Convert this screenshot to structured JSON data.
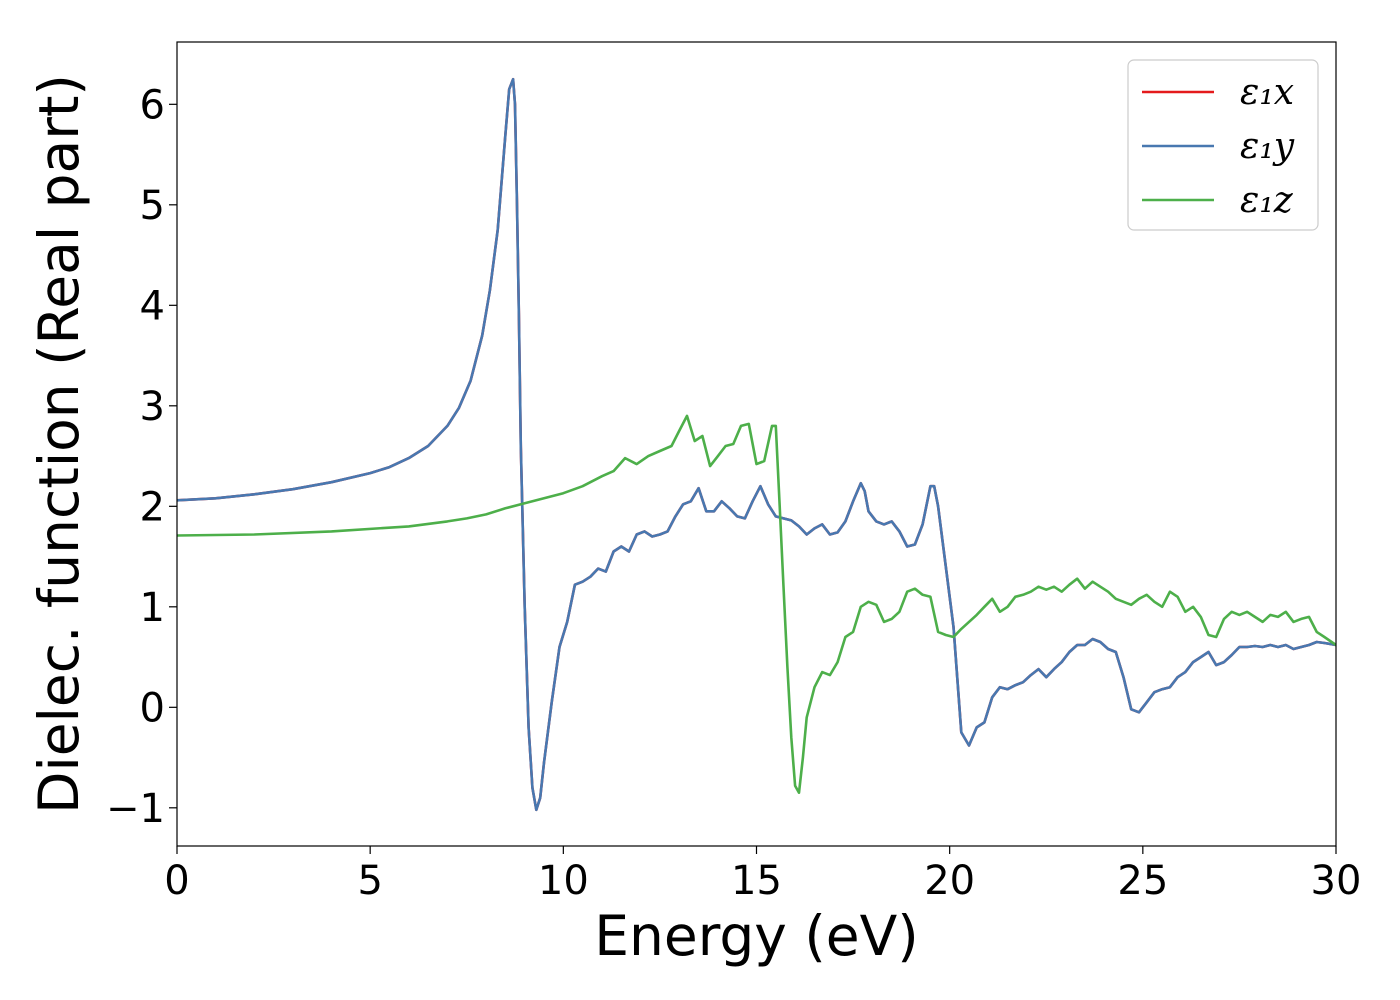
{
  "chart_data": {
    "type": "line",
    "xlabel": "Energy (eV)",
    "ylabel": "Dielec. function (Real part)",
    "xlim": [
      0,
      30
    ],
    "ylim": [
      -1.38,
      6.62
    ],
    "xticks": [
      0,
      5,
      10,
      15,
      20,
      25,
      30
    ],
    "xtick_labels": [
      "0",
      "5",
      "10",
      "15",
      "20",
      "25",
      "30"
    ],
    "yticks": [
      -1,
      0,
      1,
      2,
      3,
      4,
      5,
      6
    ],
    "ytick_labels": [
      "−1",
      "0",
      "1",
      "2",
      "3",
      "4",
      "5",
      "6"
    ],
    "grid": false,
    "legend_position": "top-right",
    "series": [
      {
        "name": "ε₁x",
        "color": "#e41a1c",
        "x": [
          0,
          1,
          2,
          3,
          4,
          5,
          5.5,
          6,
          6.5,
          7,
          7.3,
          7.6,
          7.9,
          8.1,
          8.3,
          8.5,
          8.6,
          8.7,
          8.75,
          8.8,
          8.85,
          8.9,
          9.0,
          9.1,
          9.2,
          9.3,
          9.4,
          9.5,
          9.7,
          9.9,
          10.1,
          10.3,
          10.5,
          10.7,
          10.9,
          11.1,
          11.3,
          11.5,
          11.7,
          11.9,
          12.1,
          12.3,
          12.5,
          12.7,
          12.9,
          13.1,
          13.3,
          13.5,
          13.7,
          13.9,
          14.1,
          14.3,
          14.5,
          14.7,
          14.9,
          15.1,
          15.3,
          15.5,
          15.7,
          15.9,
          16.1,
          16.3,
          16.5,
          16.7,
          16.9,
          17.1,
          17.3,
          17.5,
          17.7,
          17.8,
          17.9,
          18.1,
          18.3,
          18.5,
          18.7,
          18.9,
          19.1,
          19.3,
          19.5,
          19.6,
          19.7,
          19.9,
          20.1,
          20.3,
          20.5,
          20.7,
          20.9,
          21.1,
          21.3,
          21.5,
          21.7,
          21.9,
          22.1,
          22.3,
          22.5,
          22.7,
          22.9,
          23.1,
          23.3,
          23.5,
          23.7,
          23.9,
          24.1,
          24.3,
          24.5,
          24.7,
          24.9,
          25.1,
          25.3,
          25.5,
          25.7,
          25.9,
          26.1,
          26.3,
          26.5,
          26.7,
          26.9,
          27.1,
          27.3,
          27.5,
          27.7,
          27.9,
          28.1,
          28.3,
          28.5,
          28.7,
          28.9,
          29.1,
          29.3,
          29.5,
          29.7,
          30
        ],
        "y": [
          2.06,
          2.08,
          2.12,
          2.17,
          2.24,
          2.33,
          2.39,
          2.48,
          2.6,
          2.8,
          2.98,
          3.25,
          3.7,
          4.15,
          4.75,
          5.7,
          6.15,
          6.25,
          6.0,
          5.0,
          3.9,
          2.6,
          1.0,
          -0.2,
          -0.8,
          -1.02,
          -0.9,
          -0.55,
          0.05,
          0.6,
          0.85,
          1.22,
          1.25,
          1.3,
          1.38,
          1.35,
          1.55,
          1.6,
          1.55,
          1.72,
          1.75,
          1.7,
          1.72,
          1.75,
          1.9,
          2.02,
          2.05,
          2.18,
          1.95,
          1.95,
          2.05,
          1.98,
          1.9,
          1.88,
          2.05,
          2.2,
          2.02,
          1.9,
          1.88,
          1.86,
          1.8,
          1.72,
          1.78,
          1.82,
          1.72,
          1.74,
          1.85,
          2.05,
          2.23,
          2.15,
          1.95,
          1.85,
          1.82,
          1.85,
          1.75,
          1.6,
          1.62,
          1.82,
          2.2,
          2.2,
          2.0,
          1.4,
          0.8,
          -0.25,
          -0.38,
          -0.2,
          -0.15,
          0.1,
          0.2,
          0.18,
          0.22,
          0.25,
          0.32,
          0.38,
          0.3,
          0.38,
          0.45,
          0.55,
          0.62,
          0.62,
          0.68,
          0.65,
          0.58,
          0.55,
          0.3,
          -0.02,
          -0.05,
          0.05,
          0.15,
          0.18,
          0.2,
          0.3,
          0.35,
          0.45,
          0.5,
          0.55,
          0.42,
          0.45,
          0.52,
          0.6,
          0.6,
          0.61,
          0.6,
          0.62,
          0.6,
          0.62,
          0.58,
          0.6,
          0.62,
          0.65,
          0.64,
          0.62
        ]
      },
      {
        "name": "ε₁y",
        "color": "#4878b0",
        "x": [
          0,
          1,
          2,
          3,
          4,
          5,
          5.5,
          6,
          6.5,
          7,
          7.3,
          7.6,
          7.9,
          8.1,
          8.3,
          8.5,
          8.6,
          8.7,
          8.75,
          8.8,
          8.85,
          8.9,
          9.0,
          9.1,
          9.2,
          9.3,
          9.4,
          9.5,
          9.7,
          9.9,
          10.1,
          10.3,
          10.5,
          10.7,
          10.9,
          11.1,
          11.3,
          11.5,
          11.7,
          11.9,
          12.1,
          12.3,
          12.5,
          12.7,
          12.9,
          13.1,
          13.3,
          13.5,
          13.7,
          13.9,
          14.1,
          14.3,
          14.5,
          14.7,
          14.9,
          15.1,
          15.3,
          15.5,
          15.7,
          15.9,
          16.1,
          16.3,
          16.5,
          16.7,
          16.9,
          17.1,
          17.3,
          17.5,
          17.7,
          17.8,
          17.9,
          18.1,
          18.3,
          18.5,
          18.7,
          18.9,
          19.1,
          19.3,
          19.5,
          19.6,
          19.7,
          19.9,
          20.1,
          20.3,
          20.5,
          20.7,
          20.9,
          21.1,
          21.3,
          21.5,
          21.7,
          21.9,
          22.1,
          22.3,
          22.5,
          22.7,
          22.9,
          23.1,
          23.3,
          23.5,
          23.7,
          23.9,
          24.1,
          24.3,
          24.5,
          24.7,
          24.9,
          25.1,
          25.3,
          25.5,
          25.7,
          25.9,
          26.1,
          26.3,
          26.5,
          26.7,
          26.9,
          27.1,
          27.3,
          27.5,
          27.7,
          27.9,
          28.1,
          28.3,
          28.5,
          28.7,
          28.9,
          29.1,
          29.3,
          29.5,
          29.7,
          30
        ],
        "y": [
          2.06,
          2.08,
          2.12,
          2.17,
          2.24,
          2.33,
          2.39,
          2.48,
          2.6,
          2.8,
          2.98,
          3.25,
          3.7,
          4.15,
          4.75,
          5.7,
          6.15,
          6.25,
          6.0,
          5.0,
          3.9,
          2.6,
          1.0,
          -0.2,
          -0.8,
          -1.02,
          -0.9,
          -0.55,
          0.05,
          0.6,
          0.85,
          1.22,
          1.25,
          1.3,
          1.38,
          1.35,
          1.55,
          1.6,
          1.55,
          1.72,
          1.75,
          1.7,
          1.72,
          1.75,
          1.9,
          2.02,
          2.05,
          2.18,
          1.95,
          1.95,
          2.05,
          1.98,
          1.9,
          1.88,
          2.05,
          2.2,
          2.02,
          1.9,
          1.88,
          1.86,
          1.8,
          1.72,
          1.78,
          1.82,
          1.72,
          1.74,
          1.85,
          2.05,
          2.23,
          2.15,
          1.95,
          1.85,
          1.82,
          1.85,
          1.75,
          1.6,
          1.62,
          1.82,
          2.2,
          2.2,
          2.0,
          1.4,
          0.8,
          -0.25,
          -0.38,
          -0.2,
          -0.15,
          0.1,
          0.2,
          0.18,
          0.22,
          0.25,
          0.32,
          0.38,
          0.3,
          0.38,
          0.45,
          0.55,
          0.62,
          0.62,
          0.68,
          0.65,
          0.58,
          0.55,
          0.3,
          -0.02,
          -0.05,
          0.05,
          0.15,
          0.18,
          0.2,
          0.3,
          0.35,
          0.45,
          0.5,
          0.55,
          0.42,
          0.45,
          0.52,
          0.6,
          0.6,
          0.61,
          0.6,
          0.62,
          0.6,
          0.62,
          0.58,
          0.6,
          0.62,
          0.65,
          0.64,
          0.62
        ]
      },
      {
        "name": "ε₁z",
        "color": "#4daf4a",
        "x": [
          0,
          2,
          4,
          6,
          7,
          7.5,
          8,
          8.5,
          9,
          9.5,
          10,
          10.5,
          11,
          11.3,
          11.6,
          11.9,
          12.2,
          12.5,
          12.8,
          13.0,
          13.2,
          13.4,
          13.6,
          13.8,
          14.0,
          14.2,
          14.4,
          14.6,
          14.8,
          15.0,
          15.2,
          15.4,
          15.5,
          15.6,
          15.7,
          15.8,
          15.9,
          16.0,
          16.1,
          16.2,
          16.3,
          16.5,
          16.7,
          16.9,
          17.1,
          17.3,
          17.5,
          17.7,
          17.9,
          18.1,
          18.3,
          18.5,
          18.7,
          18.9,
          19.1,
          19.3,
          19.5,
          19.7,
          19.9,
          20.1,
          20.3,
          20.5,
          20.7,
          20.9,
          21.1,
          21.3,
          21.5,
          21.7,
          21.9,
          22.1,
          22.3,
          22.5,
          22.7,
          22.9,
          23.1,
          23.3,
          23.5,
          23.7,
          23.9,
          24.1,
          24.3,
          24.5,
          24.7,
          24.9,
          25.1,
          25.3,
          25.5,
          25.7,
          25.9,
          26.1,
          26.3,
          26.5,
          26.7,
          26.9,
          27.1,
          27.3,
          27.5,
          27.7,
          27.9,
          28.1,
          28.3,
          28.5,
          28.7,
          28.9,
          29.1,
          29.3,
          29.5,
          29.7,
          30
        ],
        "y": [
          1.71,
          1.72,
          1.75,
          1.8,
          1.85,
          1.88,
          1.92,
          1.98,
          2.03,
          2.08,
          2.13,
          2.2,
          2.3,
          2.35,
          2.48,
          2.42,
          2.5,
          2.55,
          2.6,
          2.75,
          2.9,
          2.65,
          2.7,
          2.4,
          2.5,
          2.6,
          2.62,
          2.8,
          2.82,
          2.42,
          2.45,
          2.8,
          2.8,
          2.0,
          1.2,
          0.4,
          -0.3,
          -0.78,
          -0.85,
          -0.5,
          -0.1,
          0.2,
          0.35,
          0.32,
          0.45,
          0.7,
          0.75,
          1.0,
          1.05,
          1.02,
          0.85,
          0.88,
          0.95,
          1.15,
          1.18,
          1.12,
          1.1,
          0.75,
          0.72,
          0.7,
          0.78,
          0.85,
          0.92,
          1.0,
          1.08,
          0.95,
          1.0,
          1.1,
          1.12,
          1.15,
          1.2,
          1.17,
          1.2,
          1.15,
          1.22,
          1.28,
          1.18,
          1.25,
          1.2,
          1.15,
          1.08,
          1.05,
          1.02,
          1.08,
          1.12,
          1.05,
          1.0,
          1.15,
          1.1,
          0.95,
          1.0,
          0.9,
          0.72,
          0.7,
          0.88,
          0.95,
          0.92,
          0.95,
          0.9,
          0.85,
          0.92,
          0.9,
          0.95,
          0.85,
          0.88,
          0.9,
          0.75,
          0.7,
          0.62
        ]
      }
    ]
  }
}
